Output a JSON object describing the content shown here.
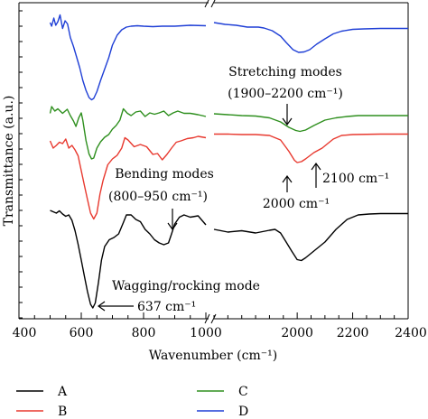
{
  "chart_data": {
    "type": "line",
    "xlabel": "Wavenumber (cm⁻¹)",
    "ylabel": "Transmittance (a.u.)",
    "xlim": [
      400,
      2400
    ],
    "x_axis_break": [
      1000,
      1700
    ],
    "x_ticks": [
      400,
      600,
      800,
      1000,
      2000,
      2200,
      2400
    ],
    "grid": false,
    "legend_position": "bottom",
    "annotations": {
      "stretching_title": "Stretching modes",
      "stretching_range": "(1900–2200 cm⁻¹)",
      "bending_title": "Bending modes",
      "bending_range": "(800–950 cm⁻¹)",
      "wagging": "Wagging/rocking mode",
      "peak_637": "637 cm⁻¹",
      "peak_2000": "2000 cm⁻¹",
      "peak_2100": "2100 cm⁻¹"
    },
    "series": [
      {
        "name": "A",
        "color": "#000000",
        "points": [
          [
            500,
            -0.3
          ],
          [
            510,
            -0.33
          ],
          [
            520,
            -0.36
          ],
          [
            530,
            -0.31
          ],
          [
            540,
            -0.38
          ],
          [
            550,
            -0.43
          ],
          [
            560,
            -0.4
          ],
          [
            570,
            -0.52
          ],
          [
            580,
            -0.75
          ],
          [
            590,
            -1.05
          ],
          [
            600,
            -1.4
          ],
          [
            610,
            -1.75
          ],
          [
            620,
            -2.1
          ],
          [
            630,
            -2.38
          ],
          [
            637,
            -2.46
          ],
          [
            645,
            -2.35
          ],
          [
            655,
            -1.9
          ],
          [
            665,
            -1.4
          ],
          [
            675,
            -1.1
          ],
          [
            690,
            -0.95
          ],
          [
            705,
            -0.9
          ],
          [
            720,
            -0.82
          ],
          [
            735,
            -0.57
          ],
          [
            745,
            -0.4
          ],
          [
            760,
            -0.4
          ],
          [
            775,
            -0.5
          ],
          [
            790,
            -0.55
          ],
          [
            805,
            -0.72
          ],
          [
            820,
            -0.82
          ],
          [
            835,
            -0.95
          ],
          [
            850,
            -1.02
          ],
          [
            865,
            -1.06
          ],
          [
            880,
            -1.02
          ],
          [
            890,
            -0.82
          ],
          [
            900,
            -0.6
          ],
          [
            915,
            -0.45
          ],
          [
            930,
            -0.4
          ],
          [
            950,
            -0.45
          ],
          [
            975,
            -0.42
          ],
          [
            1000,
            -0.62
          ],
          [
            1700,
            -0.72
          ],
          [
            1750,
            -0.78
          ],
          [
            1800,
            -0.75
          ],
          [
            1850,
            -0.8
          ],
          [
            1900,
            -0.74
          ],
          [
            1920,
            -0.72
          ],
          [
            1940,
            -0.8
          ],
          [
            1960,
            -1.0
          ],
          [
            1980,
            -1.2
          ],
          [
            2000,
            -1.39
          ],
          [
            2015,
            -1.41
          ],
          [
            2030,
            -1.35
          ],
          [
            2060,
            -1.2
          ],
          [
            2100,
            -1.0
          ],
          [
            2140,
            -0.72
          ],
          [
            2180,
            -0.5
          ],
          [
            2220,
            -0.4
          ],
          [
            2260,
            -0.38
          ],
          [
            2300,
            -0.37
          ],
          [
            2400,
            -0.37
          ]
        ]
      },
      {
        "name": "B",
        "color": "#e8392f",
        "points": [
          [
            500,
            -0.12
          ],
          [
            510,
            -0.28
          ],
          [
            520,
            -0.22
          ],
          [
            530,
            -0.15
          ],
          [
            540,
            -0.18
          ],
          [
            550,
            -0.08
          ],
          [
            560,
            -0.28
          ],
          [
            570,
            -0.22
          ],
          [
            580,
            -0.32
          ],
          [
            590,
            -0.45
          ],
          [
            600,
            -0.78
          ],
          [
            610,
            -1.1
          ],
          [
            620,
            -1.42
          ],
          [
            630,
            -1.72
          ],
          [
            640,
            -1.85
          ],
          [
            650,
            -1.72
          ],
          [
            660,
            -1.3
          ],
          [
            670,
            -1.0
          ],
          [
            685,
            -0.65
          ],
          [
            700,
            -0.52
          ],
          [
            715,
            -0.44
          ],
          [
            730,
            -0.28
          ],
          [
            740,
            -0.05
          ],
          [
            750,
            -0.1
          ],
          [
            770,
            -0.25
          ],
          [
            790,
            -0.2
          ],
          [
            810,
            -0.25
          ],
          [
            830,
            -0.42
          ],
          [
            845,
            -0.4
          ],
          [
            860,
            -0.54
          ],
          [
            875,
            -0.42
          ],
          [
            890,
            -0.28
          ],
          [
            905,
            -0.15
          ],
          [
            920,
            -0.12
          ],
          [
            940,
            -0.07
          ],
          [
            960,
            -0.05
          ],
          [
            975,
            -0.02
          ],
          [
            1000,
            -0.05
          ],
          [
            1700,
            0.03
          ],
          [
            1750,
            0.03
          ],
          [
            1800,
            0.02
          ],
          [
            1850,
            0.02
          ],
          [
            1900,
            0.0
          ],
          [
            1940,
            -0.1
          ],
          [
            1970,
            -0.35
          ],
          [
            1990,
            -0.55
          ],
          [
            2000,
            -0.6
          ],
          [
            2015,
            -0.58
          ],
          [
            2030,
            -0.52
          ],
          [
            2060,
            -0.38
          ],
          [
            2090,
            -0.28
          ],
          [
            2110,
            -0.18
          ],
          [
            2130,
            -0.08
          ],
          [
            2160,
            0.0
          ],
          [
            2200,
            0.02
          ],
          [
            2300,
            0.03
          ],
          [
            2400,
            0.03
          ]
        ]
      },
      {
        "name": "C",
        "color": "#2e8f1e",
        "points": [
          [
            500,
            0.05
          ],
          [
            505,
            0.2
          ],
          [
            515,
            0.1
          ],
          [
            525,
            0.15
          ],
          [
            540,
            0.05
          ],
          [
            555,
            0.14
          ],
          [
            565,
            0.0
          ],
          [
            575,
            -0.12
          ],
          [
            583,
            -0.24
          ],
          [
            592,
            -0.05
          ],
          [
            600,
            0.06
          ],
          [
            605,
            -0.1
          ],
          [
            615,
            -0.55
          ],
          [
            625,
            -0.85
          ],
          [
            633,
            -0.96
          ],
          [
            640,
            -0.94
          ],
          [
            650,
            -0.72
          ],
          [
            662,
            -0.58
          ],
          [
            675,
            -0.48
          ],
          [
            688,
            -0.42
          ],
          [
            700,
            -0.3
          ],
          [
            712,
            -0.22
          ],
          [
            724,
            -0.1
          ],
          [
            735,
            0.15
          ],
          [
            748,
            0.05
          ],
          [
            760,
            0.0
          ],
          [
            775,
            0.08
          ],
          [
            790,
            0.1
          ],
          [
            805,
            -0.02
          ],
          [
            820,
            0.06
          ],
          [
            835,
            0.03
          ],
          [
            850,
            0.06
          ],
          [
            865,
            0.1
          ],
          [
            880,
            0.0
          ],
          [
            895,
            0.06
          ],
          [
            910,
            0.1
          ],
          [
            930,
            0.05
          ],
          [
            950,
            0.05
          ],
          [
            975,
            0.02
          ],
          [
            1000,
            -0.02
          ],
          [
            1700,
            0.04
          ],
          [
            1750,
            0.02
          ],
          [
            1800,
            0.0
          ],
          [
            1850,
            -0.01
          ],
          [
            1900,
            -0.05
          ],
          [
            1940,
            -0.14
          ],
          [
            1970,
            -0.26
          ],
          [
            1995,
            -0.33
          ],
          [
            2010,
            -0.35
          ],
          [
            2030,
            -0.32
          ],
          [
            2060,
            -0.22
          ],
          [
            2100,
            -0.1
          ],
          [
            2140,
            -0.05
          ],
          [
            2180,
            -0.02
          ],
          [
            2220,
            0.0
          ],
          [
            2300,
            0.0
          ],
          [
            2400,
            0.0
          ]
        ]
      },
      {
        "name": "D",
        "color": "#1f3fd6",
        "points": [
          [
            500,
            0.08
          ],
          [
            505,
            0.0
          ],
          [
            512,
            0.18
          ],
          [
            518,
            0.02
          ],
          [
            525,
            0.1
          ],
          [
            532,
            0.25
          ],
          [
            540,
            -0.05
          ],
          [
            548,
            0.12
          ],
          [
            556,
            0.05
          ],
          [
            565,
            -0.25
          ],
          [
            575,
            -0.45
          ],
          [
            585,
            -0.68
          ],
          [
            595,
            -0.92
          ],
          [
            605,
            -1.2
          ],
          [
            615,
            -1.42
          ],
          [
            625,
            -1.58
          ],
          [
            633,
            -1.63
          ],
          [
            640,
            -1.6
          ],
          [
            650,
            -1.45
          ],
          [
            662,
            -1.2
          ],
          [
            675,
            -0.95
          ],
          [
            688,
            -0.7
          ],
          [
            700,
            -0.42
          ],
          [
            715,
            -0.2
          ],
          [
            730,
            -0.08
          ],
          [
            745,
            -0.02
          ],
          [
            760,
            0.0
          ],
          [
            780,
            0.01
          ],
          [
            800,
            0.0
          ],
          [
            830,
            -0.01
          ],
          [
            860,
            0.0
          ],
          [
            900,
            0.0
          ],
          [
            950,
            0.02
          ],
          [
            1000,
            0.01
          ],
          [
            1700,
            0.08
          ],
          [
            1740,
            0.04
          ],
          [
            1780,
            0.02
          ],
          [
            1820,
            -0.02
          ],
          [
            1860,
            -0.02
          ],
          [
            1880,
            -0.04
          ],
          [
            1910,
            -0.1
          ],
          [
            1940,
            -0.22
          ],
          [
            1960,
            -0.36
          ],
          [
            1985,
            -0.52
          ],
          [
            2005,
            -0.58
          ],
          [
            2025,
            -0.57
          ],
          [
            2045,
            -0.52
          ],
          [
            2070,
            -0.4
          ],
          [
            2100,
            -0.28
          ],
          [
            2130,
            -0.17
          ],
          [
            2160,
            -0.11
          ],
          [
            2200,
            -0.07
          ],
          [
            2240,
            -0.06
          ],
          [
            2300,
            -0.05
          ],
          [
            2400,
            -0.05
          ]
        ]
      }
    ]
  }
}
